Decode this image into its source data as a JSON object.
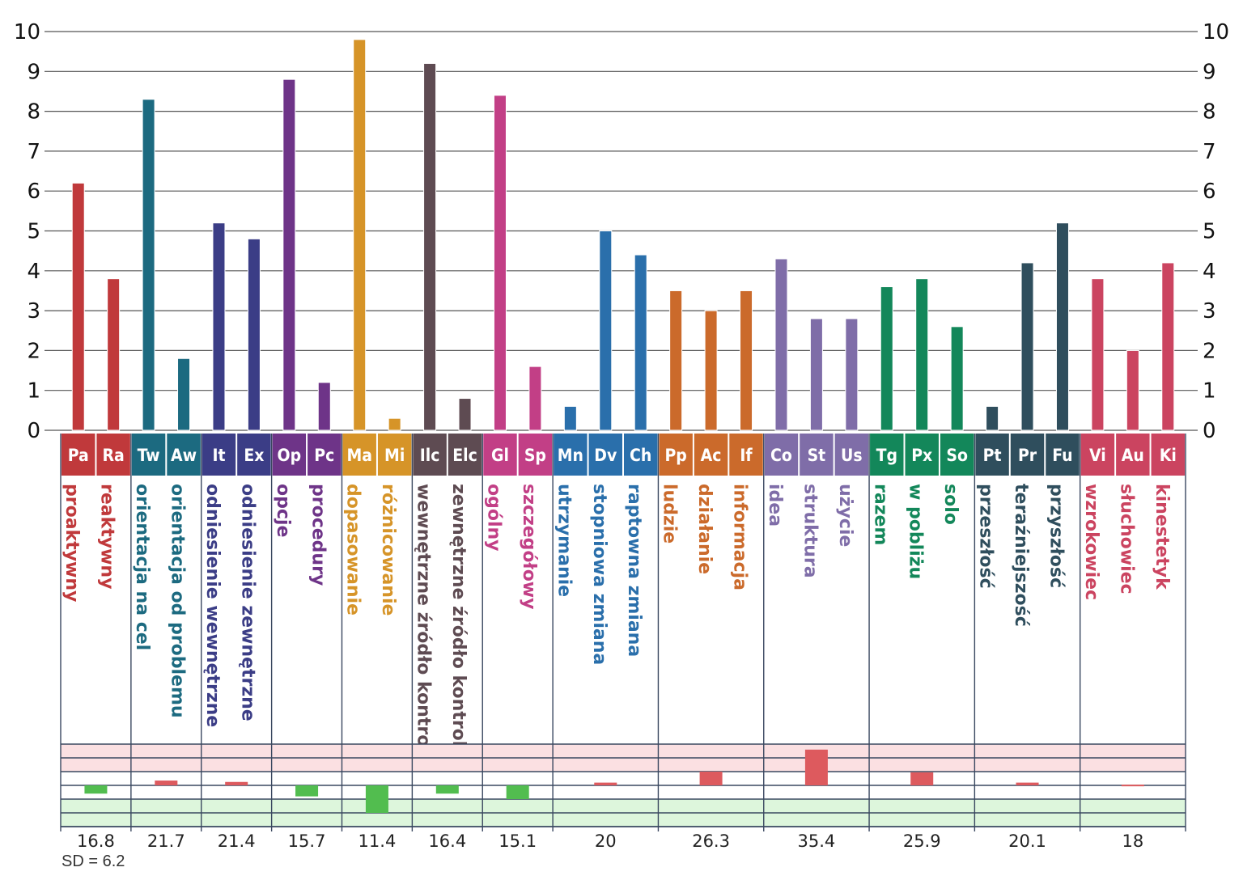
{
  "chart_data": {
    "type": "bar",
    "ylim": [
      0,
      10
    ],
    "yticks": [
      0,
      1,
      2,
      3,
      4,
      5,
      6,
      7,
      8,
      9,
      10
    ],
    "grid": true,
    "groups": [
      {
        "color": "#c0393b",
        "items": [
          {
            "code": "Pa",
            "label": "proaktywny",
            "value": 6.2
          },
          {
            "code": "Ra",
            "label": "reaktywny",
            "value": 3.8
          }
        ],
        "score": "16.8",
        "deviation": -0.6
      },
      {
        "color": "#1c6a80",
        "items": [
          {
            "code": "Tw",
            "label": "orientacja na cel",
            "value": 8.3
          },
          {
            "code": "Aw",
            "label": "orientacja od problemu",
            "value": 1.8
          }
        ],
        "score": "21.7",
        "deviation": 0.35
      },
      {
        "color": "#3b3d86",
        "items": [
          {
            "code": "It",
            "label": "odniesienie wewnętrzne",
            "value": 5.2
          },
          {
            "code": "Ex",
            "label": "odniesienie zewnętrzne",
            "value": 4.8
          }
        ],
        "score": "21.4",
        "deviation": 0.25
      },
      {
        "color": "#6e3488",
        "items": [
          {
            "code": "Op",
            "label": "opcje",
            "value": 8.8
          },
          {
            "code": "Pc",
            "label": "procedury",
            "value": 1.2
          }
        ],
        "score": "15.7",
        "deviation": -0.8
      },
      {
        "color": "#d69428",
        "items": [
          {
            "code": "Ma",
            "label": "dopasowanie",
            "value": 9.8
          },
          {
            "code": "Mi",
            "label": "różnicowanie",
            "value": 0.3
          }
        ],
        "score": "11.4",
        "deviation": -2.0
      },
      {
        "color": "#5e4b52",
        "items": [
          {
            "code": "Ilc",
            "label": "wewnętrzne źródło kontroli",
            "value": 9.2
          },
          {
            "code": "Elc",
            "label": "zewnętrzne źródło kontroli",
            "value": 0.8
          }
        ],
        "score": "16.4",
        "deviation": -0.6
      },
      {
        "color": "#c23f86",
        "items": [
          {
            "code": "Gl",
            "label": "ogólny",
            "value": 8.4
          },
          {
            "code": "Sp",
            "label": "szczegółowy",
            "value": 1.6
          }
        ],
        "score": "15.1",
        "deviation": -1.0
      },
      {
        "color": "#2a6fab",
        "items": [
          {
            "code": "Mn",
            "label": "utrzymanie",
            "value": 0.6
          },
          {
            "code": "Dv",
            "label": "stopniowa zmiana",
            "value": 5.0
          },
          {
            "code": "Ch",
            "label": "raptowna zmiana",
            "value": 4.4
          }
        ],
        "score": "20",
        "deviation": 0.2
      },
      {
        "color": "#cb6a2b",
        "items": [
          {
            "code": "Pp",
            "label": "ludzie",
            "value": 3.5
          },
          {
            "code": "Ac",
            "label": "działanie",
            "value": 3.0
          },
          {
            "code": "If",
            "label": "informacja",
            "value": 3.5
          }
        ],
        "score": "26.3",
        "deviation": 1.0
      },
      {
        "color": "#7f6da8",
        "items": [
          {
            "code": "Co",
            "label": "idea",
            "value": 4.3
          },
          {
            "code": "St",
            "label": "struktura",
            "value": 2.8
          },
          {
            "code": "Us",
            "label": "użycie",
            "value": 2.8
          }
        ],
        "score": "35.4",
        "deviation": 2.6
      },
      {
        "color": "#13875a",
        "items": [
          {
            "code": "Tg",
            "label": "razem",
            "value": 3.6
          },
          {
            "code": "Px",
            "label": "w pobliżu",
            "value": 3.8
          },
          {
            "code": "So",
            "label": "solo",
            "value": 2.6
          }
        ],
        "score": "25.9",
        "deviation": 0.95
      },
      {
        "color": "#2f4e5d",
        "items": [
          {
            "code": "Pt",
            "label": "przeszłość",
            "value": 0.6
          },
          {
            "code": "Pr",
            "label": "teraźniejszość",
            "value": 4.2
          },
          {
            "code": "Fu",
            "label": "przyszłość",
            "value": 5.2
          }
        ],
        "score": "20.1",
        "deviation": 0.2
      },
      {
        "color": "#cb4460",
        "items": [
          {
            "code": "Vi",
            "label": "wzrokowiec",
            "value": 3.8
          },
          {
            "code": "Au",
            "label": "słuchowiec",
            "value": 2.0
          },
          {
            "code": "Ki",
            "label": "kinestetyk",
            "value": 4.2
          }
        ],
        "score": "18",
        "deviation": 0.05
      }
    ],
    "sd_label": "SD = 6.2",
    "deviation_band_colors": {
      "upper": "#fbe0e2",
      "lower": "#ddf6dc",
      "positive_bar": "#dd5a5e",
      "negative_bar": "#52bd4f"
    }
  }
}
